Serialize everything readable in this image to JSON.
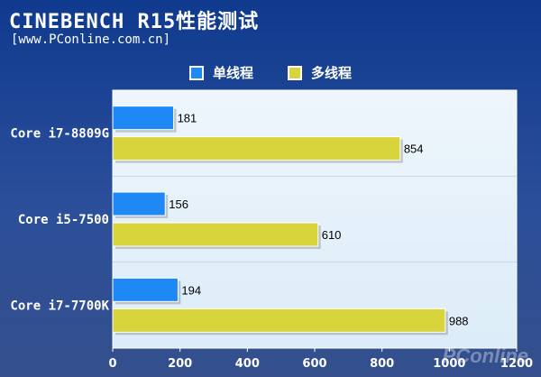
{
  "header": {
    "title": "CINEBENCH R15性能测试",
    "subtitle": "[www.PConline.com.cn]"
  },
  "watermark": "PConline",
  "colors": {
    "series_single": "#1e88f5",
    "series_multi": "#d8d43c",
    "plot_background": "#dcecf8",
    "text": "#ffffff"
  },
  "chart_data": {
    "type": "bar",
    "orientation": "horizontal",
    "title": "CINEBENCH R15性能测试",
    "categories": [
      "Core i7-8809G",
      "Core i5-7500",
      "Core i7-7700K"
    ],
    "series": [
      {
        "name": "单线程",
        "values": [
          181,
          156,
          194
        ]
      },
      {
        "name": "多线程",
        "values": [
          854,
          610,
          988
        ]
      }
    ],
    "xlim": [
      0,
      1200
    ],
    "xticks": [
      0,
      200,
      400,
      600,
      800,
      1000,
      1200
    ],
    "legend_position": "top-center",
    "grid": false
  }
}
